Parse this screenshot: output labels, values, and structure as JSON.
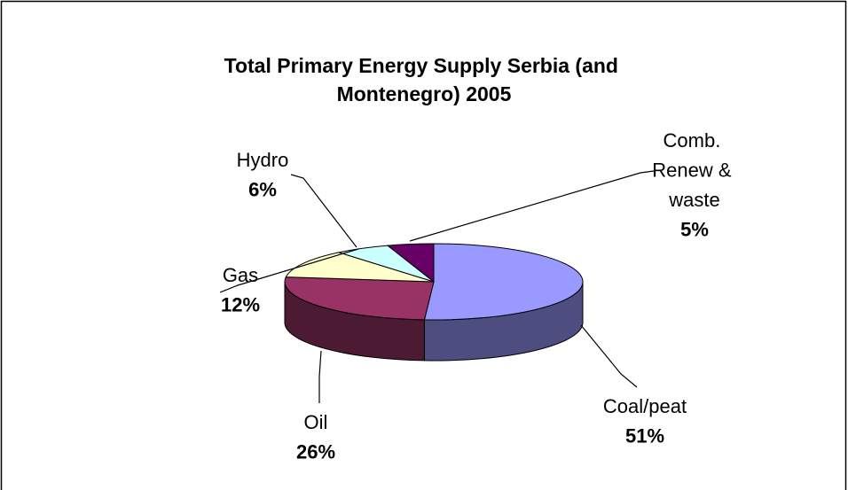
{
  "chart_data": {
    "type": "pie3d",
    "title": "Total Primary Energy Supply Serbia (and Montenegro) 2005",
    "categories": [
      "Coal/peat",
      "Oil",
      "Gas",
      "Hydro",
      "Comb. Renew & waste"
    ],
    "values": [
      51,
      26,
      12,
      6,
      5
    ],
    "value_labels": [
      "51%",
      "26%",
      "12%",
      "6%",
      "5%"
    ],
    "colors": [
      "#9999ff",
      "#993366",
      "#ffffcc",
      "#ccffff",
      "#660066"
    ],
    "side_colors": [
      "#4d4d80",
      "#4d1a33",
      "#80806a",
      "#6a8080",
      "#330033"
    ]
  }
}
